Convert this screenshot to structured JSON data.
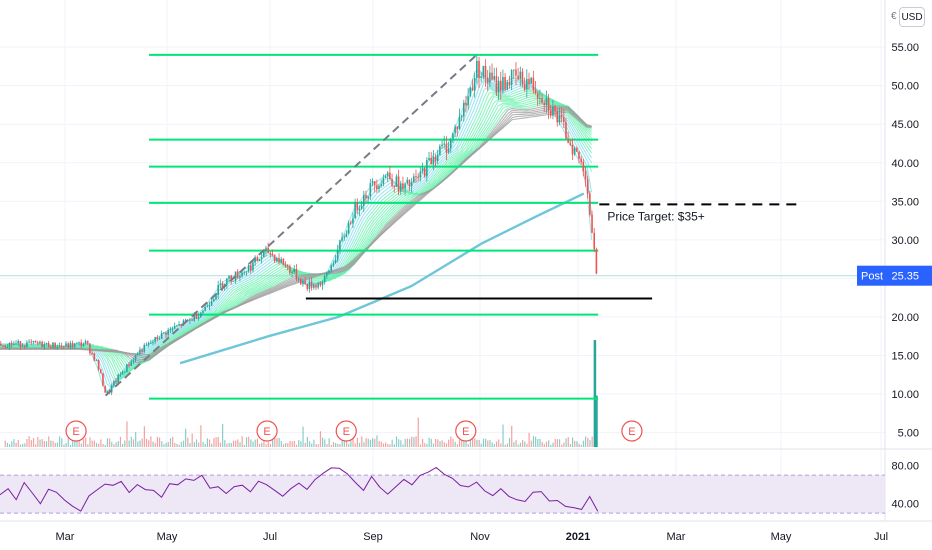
{
  "currency_label": "USD",
  "currency_edge_glyph": "€",
  "post_badge": {
    "label": "Post",
    "value": "25.35",
    "color": "#2962ff"
  },
  "colors": {
    "bull": "#26a69a",
    "bear": "#ef5350",
    "fib_line": "#00e676",
    "ma200": "#6ec6d8",
    "rsi_line": "#7b1fa2",
    "rsi_band": "#ede7f6",
    "dashed": "#787b86"
  },
  "chart_data": [
    {
      "type": "candlestick",
      "title": "",
      "ylabel": "",
      "xlabel": "",
      "currency": "USD",
      "ylim": [
        3,
        58
      ],
      "yticks": [
        "5.00",
        "10.00",
        "15.00",
        "20.00",
        "25.00",
        "30.00",
        "35.00",
        "40.00",
        "45.00",
        "50.00",
        "55.00"
      ],
      "xticks": [
        "Mar",
        "May",
        "Jul",
        "Sep",
        "Nov",
        "2021",
        "Mar",
        "May",
        "Jul"
      ],
      "price_path": [
        {
          "x": "2020-02-01",
          "y": 16.5
        },
        {
          "x": "2020-02-20",
          "y": 16.2
        },
        {
          "x": "2020-03-05",
          "y": 16.6
        },
        {
          "x": "2020-03-12",
          "y": 14.0
        },
        {
          "x": "2020-03-18",
          "y": 9.8
        },
        {
          "x": "2020-03-25",
          "y": 12.0
        },
        {
          "x": "2020-04-08",
          "y": 15.5
        },
        {
          "x": "2020-04-25",
          "y": 18.0
        },
        {
          "x": "2020-05-10",
          "y": 19.5
        },
        {
          "x": "2020-05-20",
          "y": 21.0
        },
        {
          "x": "2020-06-01",
          "y": 24.5
        },
        {
          "x": "2020-06-15",
          "y": 26.0
        },
        {
          "x": "2020-06-30",
          "y": 28.5
        },
        {
          "x": "2020-07-10",
          "y": 27.0
        },
        {
          "x": "2020-07-25",
          "y": 24.0
        },
        {
          "x": "2020-08-05",
          "y": 24.5
        },
        {
          "x": "2020-08-15",
          "y": 29.0
        },
        {
          "x": "2020-08-25",
          "y": 34.0
        },
        {
          "x": "2020-09-05",
          "y": 37.0
        },
        {
          "x": "2020-09-15",
          "y": 38.5
        },
        {
          "x": "2020-09-25",
          "y": 36.5
        },
        {
          "x": "2020-10-05",
          "y": 38.0
        },
        {
          "x": "2020-10-15",
          "y": 41.0
        },
        {
          "x": "2020-10-25",
          "y": 42.5
        },
        {
          "x": "2020-11-05",
          "y": 48.0
        },
        {
          "x": "2020-11-12",
          "y": 52.5
        },
        {
          "x": "2020-11-18",
          "y": 51.0
        },
        {
          "x": "2020-11-25",
          "y": 50.0
        },
        {
          "x": "2020-12-05",
          "y": 51.0
        },
        {
          "x": "2020-12-15",
          "y": 50.5
        },
        {
          "x": "2020-12-25",
          "y": 48.5
        },
        {
          "x": "2021-01-05",
          "y": 45.0
        },
        {
          "x": "2021-01-15",
          "y": 41.0
        },
        {
          "x": "2021-01-21",
          "y": 38.5
        },
        {
          "x": "2021-01-25",
          "y": 30.0
        },
        {
          "x": "2021-01-28",
          "y": 25.35
        }
      ],
      "ema_ribbon_anchor": [
        {
          "x": "2020-03-01",
          "y": 16.2
        },
        {
          "x": "2020-04-15",
          "y": 15.5
        },
        {
          "x": "2020-06-01",
          "y": 21.0
        },
        {
          "x": "2020-07-15",
          "y": 24.5
        },
        {
          "x": "2020-08-20",
          "y": 27.0
        },
        {
          "x": "2020-09-25",
          "y": 33.5
        },
        {
          "x": "2020-11-01",
          "y": 40.0
        },
        {
          "x": "2020-12-05",
          "y": 46.0
        },
        {
          "x": "2021-01-10",
          "y": 47.0
        },
        {
          "x": "2021-01-22",
          "y": 45.0
        }
      ],
      "ma200": [
        {
          "x": "2020-05-05",
          "y": 14.0
        },
        {
          "x": "2020-07-01",
          "y": 17.5
        },
        {
          "x": "2020-08-15",
          "y": 20.0
        },
        {
          "x": "2020-10-01",
          "y": 24.0
        },
        {
          "x": "2020-11-15",
          "y": 29.5
        },
        {
          "x": "2020-12-20",
          "y": 33.0
        },
        {
          "x": "2021-01-20",
          "y": 36.0
        }
      ],
      "horizontal_levels": [
        54.0,
        43.0,
        39.5,
        34.8,
        28.6,
        20.3,
        9.4
      ],
      "fib_span": [
        "2020-04-15",
        "2021-01-28"
      ],
      "support_line": {
        "y": 22.4,
        "from": "2020-07-25",
        "to": "2021-03-05"
      },
      "price_target_line": {
        "y": 34.6,
        "from": "2021-01-30",
        "to": "2021-06-10"
      },
      "trend_line": {
        "from": {
          "x": "2020-03-18",
          "y": 9.8
        },
        "to": {
          "x": "2020-11-12",
          "y": 54.0
        }
      },
      "volume_spikes": [
        {
          "x": "2021-01-27",
          "y": 17.0
        },
        {
          "x": "2021-01-28",
          "y": 9.8
        }
      ],
      "earnings_markers": [
        {
          "x": "2020-02-28",
          "label": "E"
        },
        {
          "x": "2020-06-30",
          "label": "E"
        },
        {
          "x": "2020-08-20",
          "label": "E"
        },
        {
          "x": "2020-11-05",
          "label": "E"
        },
        {
          "x": "2021-02-20",
          "label": "E"
        }
      ],
      "annotations": [
        {
          "text": "Price Target: $35+"
        }
      ]
    },
    {
      "type": "line",
      "title": "",
      "ylim": [
        28,
        88
      ],
      "yticks": [
        "80.00",
        "40.00"
      ],
      "band": [
        30,
        70
      ],
      "values": [
        52,
        56,
        46,
        60,
        50,
        42,
        58,
        52,
        44,
        40,
        34,
        48,
        56,
        62,
        58,
        66,
        54,
        60,
        52,
        56,
        48,
        62,
        58,
        66,
        64,
        70,
        56,
        60,
        50,
        56,
        60,
        52,
        62,
        58,
        52,
        46,
        54,
        60,
        56,
        64,
        70,
        76,
        80,
        72,
        62,
        56,
        66,
        60,
        50,
        56,
        64,
        60,
        70,
        76,
        78,
        72,
        68,
        62,
        56,
        60,
        54,
        50,
        56,
        50,
        46,
        44,
        52,
        50,
        42,
        46,
        40,
        38,
        36,
        46,
        34
      ]
    }
  ]
}
